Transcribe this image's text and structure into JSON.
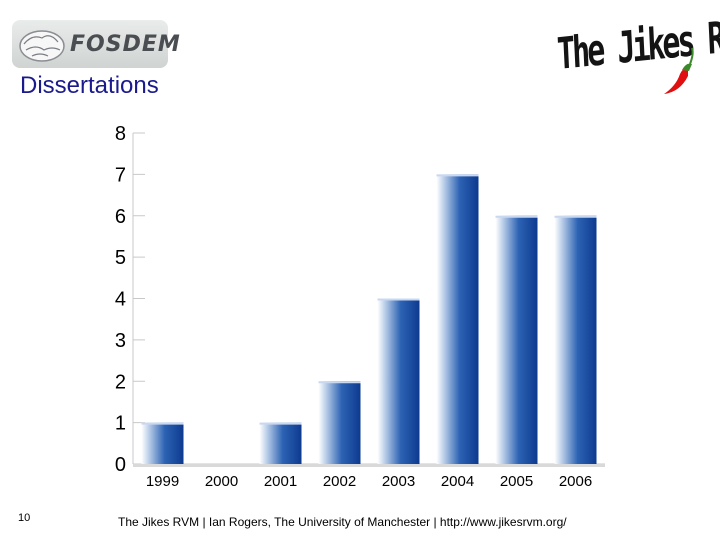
{
  "slide": {
    "title": "Dissertations",
    "page_number": "10",
    "footer": "The Jikes RVM |  Ian Rogers, The University of Manchester | http://www.jikesrvm.org/"
  },
  "logos": {
    "left": {
      "text": "FOSDEM",
      "icon": "brain-logo-icon"
    },
    "right": {
      "text": "The Jikes RVM",
      "icon": "chili-pepper-icon"
    }
  },
  "colors": {
    "title": "#1a1a8c",
    "bar_dark": "#0d3a8f",
    "bar_light": "#ffffff",
    "chili_red": "#e01010",
    "chili_green": "#3a8a2a"
  },
  "chart_data": {
    "type": "bar",
    "categories": [
      "1999",
      "2000",
      "2001",
      "2002",
      "2003",
      "2004",
      "2005",
      "2006"
    ],
    "values": [
      1,
      0,
      1,
      2,
      4,
      7,
      6,
      6
    ],
    "title": "",
    "xlabel": "",
    "ylabel": "",
    "ylim": [
      0,
      8
    ],
    "yticks": [
      "0",
      "1",
      "2",
      "3",
      "4",
      "5",
      "6",
      "7",
      "8"
    ],
    "grid": false,
    "legend": "none"
  }
}
